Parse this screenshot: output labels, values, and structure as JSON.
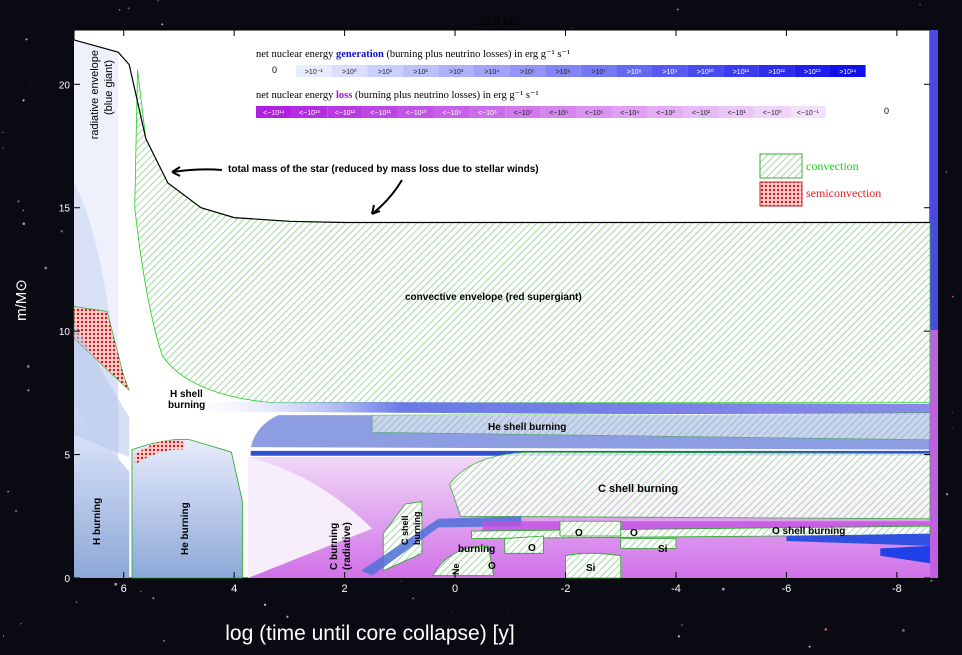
{
  "chart_data": {
    "type": "area",
    "title": "22.0 M⊙",
    "xlabel": "log (time until core collapse)  [y]",
    "ylabel": "m/M⊙",
    "xlim": [
      6.9,
      -8.6
    ],
    "ylim": [
      0,
      22.2
    ],
    "x_ticks": [
      6,
      4,
      2,
      0,
      -2,
      -4,
      -6,
      -8
    ],
    "y_ticks": [
      0,
      5,
      10,
      15,
      20
    ],
    "total_mass": {
      "x": [
        6.9,
        6.1,
        5.9,
        5.6,
        5.2,
        4.6,
        4.0,
        3.0,
        2.0,
        0.0,
        -2.0,
        -4.0,
        -6.0,
        -8.6
      ],
      "y": [
        21.8,
        21.3,
        20.8,
        17.8,
        16.0,
        15.0,
        14.6,
        14.45,
        14.4,
        14.4,
        14.4,
        14.4,
        14.4,
        14.4
      ]
    },
    "generation_legend": {
      "title_pre": "net nuclear energy ",
      "title_key": "generation",
      "title_post": " (burning plus neutrino losses) in erg g⁻¹ s⁻¹",
      "zero": "0",
      "labels": [
        ">10⁻¹",
        ">10⁰",
        ">10¹",
        ">10²",
        ">10³",
        ">10⁴",
        ">10⁵",
        ">10⁶",
        ">10⁷",
        ">10⁸",
        ">10⁹",
        ">10¹⁰",
        ">10¹¹",
        ">10¹²",
        ">10¹³",
        ">10¹⁴"
      ]
    },
    "loss_legend": {
      "title_pre": "net nuclear energy ",
      "title_key": "loss",
      "title_post": " (burning plus neutrino losses) in erg g⁻¹ s⁻¹",
      "zero": "0",
      "labels": [
        "<−10¹⁴",
        "<−10¹³",
        "<−10¹²",
        "<−10¹¹",
        "<−10¹⁰",
        "<−10⁹",
        "<−10⁸",
        "<−10⁷",
        "<−10⁶",
        "<−10⁵",
        "<−10⁴",
        "<−10³",
        "<−10²",
        "<−10¹",
        "<−10⁰",
        "<−10⁻¹"
      ]
    },
    "key": {
      "convection": "convection",
      "semiconvection": "semiconvection",
      "convection_color": "#22cc22",
      "semiconvection_color": "#e02020"
    },
    "annotations": {
      "radiative_envelope": "radiative envelope",
      "blue_giant": "(blue giant)",
      "total_mass": "total mass of the star (reduced by mass loss due to stellar winds)",
      "convective_envelope": "convective envelope (red supergiant)",
      "h_shell_1": "H shell",
      "h_shell_2": "burning",
      "he_shell": "He shell burning",
      "c_shell": "C shell burning",
      "h_burning": "H burning",
      "he_burning": "He burning",
      "c_burning_1": "C burning",
      "c_burning_2": "(radiative)",
      "c_shell_small_1": "C shell",
      "c_shell_small_2": "burning",
      "o_burning": "burning",
      "o_1": "O",
      "o_2": "O",
      "o_3": "O",
      "o_4": "O",
      "o_shell": "O shell burning",
      "si_1": "Si",
      "si_2": "Si",
      "ne": "Ne"
    },
    "colors": {
      "generation_low": "#e8ecff",
      "generation_high": "#1010e8",
      "loss_high": "#b020e0",
      "loss_low": "#f4e0fb"
    }
  }
}
